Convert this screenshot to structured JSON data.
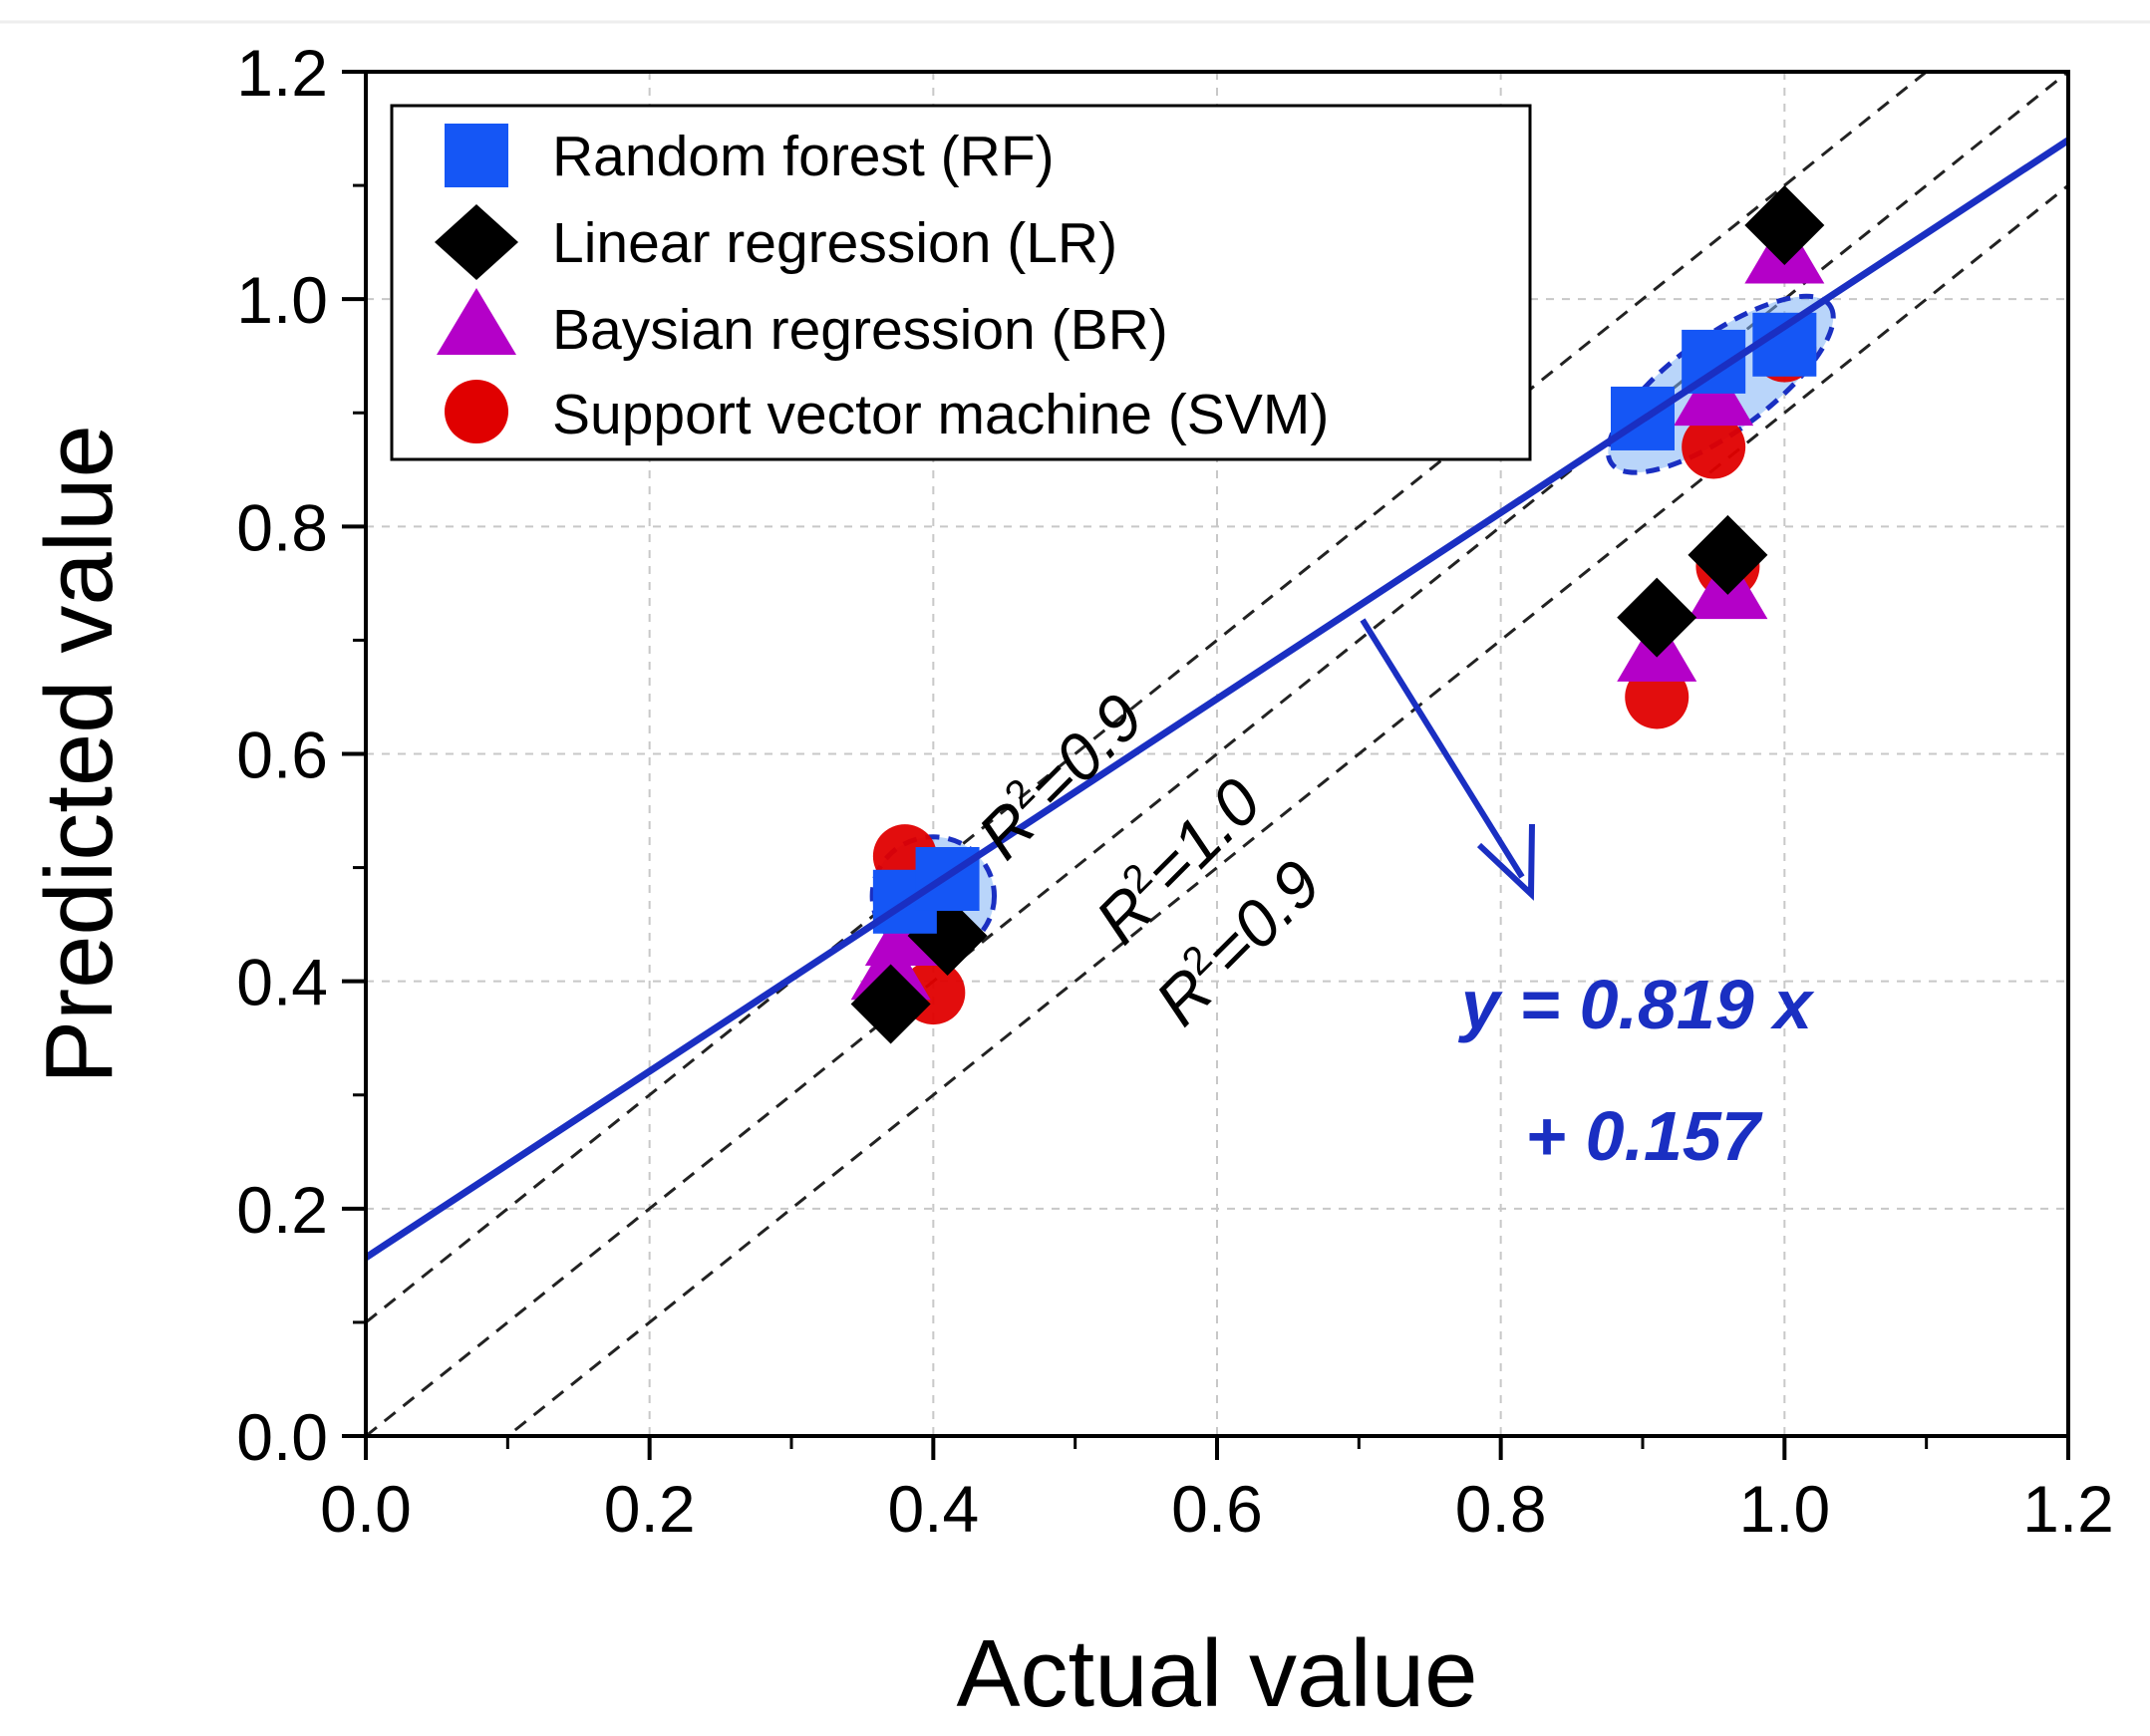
{
  "chart_data": {
    "type": "scatter",
    "xlabel": "Actual value",
    "ylabel": "Predicted value",
    "xlim": [
      0.0,
      1.2
    ],
    "ylim": [
      0.0,
      1.2
    ],
    "x_ticks": [
      "0.0",
      "0.2",
      "0.4",
      "0.6",
      "0.8",
      "1.0",
      "1.2"
    ],
    "y_ticks": [
      "0.0",
      "0.2",
      "0.4",
      "0.6",
      "0.8",
      "1.0",
      "1.2"
    ],
    "grid": true,
    "legend_position": "top-left",
    "series": [
      {
        "name": "Random forest (RF)",
        "marker": "square",
        "color": "#1556f5",
        "points": [
          [
            0.38,
            0.47
          ],
          [
            0.41,
            0.49
          ],
          [
            0.9,
            0.895
          ],
          [
            0.95,
            0.945
          ],
          [
            1.0,
            0.96
          ]
        ]
      },
      {
        "name": "Linear regression (LR)",
        "marker": "diamond",
        "color": "#000000",
        "points": [
          [
            0.37,
            0.38
          ],
          [
            0.41,
            0.44
          ],
          [
            0.91,
            0.72
          ],
          [
            0.96,
            0.775
          ],
          [
            1.0,
            1.065
          ]
        ]
      },
      {
        "name": "Baysian regression (BR)",
        "marker": "triangle",
        "color": "#b400c8",
        "points": [
          [
            0.37,
            0.41
          ],
          [
            0.38,
            0.44
          ],
          [
            0.91,
            0.69
          ],
          [
            0.96,
            0.745
          ],
          [
            0.95,
            0.915
          ],
          [
            1.0,
            1.04
          ]
        ]
      },
      {
        "name": "Support vector machine (SVM)",
        "marker": "circle",
        "color": "#e00000",
        "points": [
          [
            0.38,
            0.51
          ],
          [
            0.4,
            0.39
          ],
          [
            0.91,
            0.65
          ],
          [
            0.96,
            0.765
          ],
          [
            0.95,
            0.87
          ],
          [
            1.0,
            0.955
          ]
        ]
      }
    ],
    "reference_lines": [
      {
        "label": "R²=0.9",
        "slope": 1,
        "intercept": 0.1
      },
      {
        "label": "R²=1.0",
        "slope": 1,
        "intercept": 0.0
      },
      {
        "label": "R²=0.9",
        "slope": 1,
        "intercept": -0.1
      }
    ],
    "fit_line": {
      "slope": 0.819,
      "intercept": 0.157,
      "color": "#1a2fc2"
    },
    "annotations": {
      "r2_upper": "=0.9",
      "r2_middle": "=1.0",
      "r2_lower": "=0.9",
      "r2_prefix": "R",
      "r2_power": "2",
      "equation_line1": "y = 0.819 x",
      "equation_line2": "+ 0.157"
    },
    "clusters": [
      {
        "cx": 0.4,
        "cy": 0.475,
        "rx": 0.043,
        "ry": 0.052,
        "angle": 0
      },
      {
        "cx": 0.955,
        "cy": 0.925,
        "rx": 0.095,
        "ry": 0.042,
        "angle": 0.62
      }
    ]
  }
}
